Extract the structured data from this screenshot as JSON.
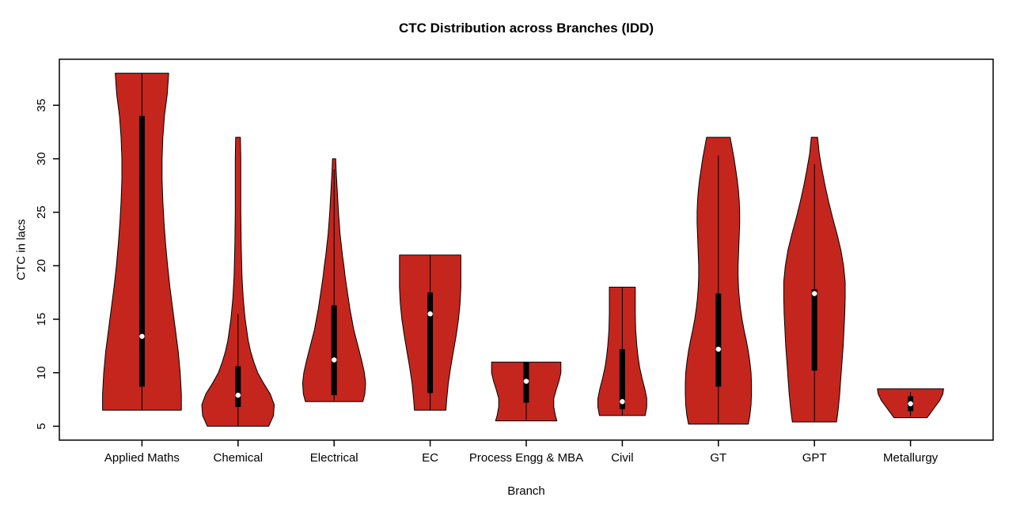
{
  "chart_data": {
    "type": "violin",
    "title": "CTC Distribution across Branches (IDD)",
    "xlabel": "Branch",
    "ylabel": "CTC in lacs",
    "ylim": [
      3.7,
      39.3
    ],
    "yticks": [
      5,
      10,
      15,
      20,
      25,
      30,
      35
    ],
    "fill_color": "#C4261D",
    "stroke_color": "#000000",
    "background_color": "#ffffff",
    "legend": "none",
    "grid": false,
    "categories": [
      "Applied Maths",
      "Chemical",
      "Electrical",
      "EC",
      "Process Engg & MBA",
      "Civil",
      "GT",
      "GPT",
      "Metallurgy"
    ],
    "units": "lacs",
    "violins": [
      {
        "branch": "Applied Maths",
        "min": 6.5,
        "max": 38,
        "whisker_low": 6.5,
        "whisker_high": 38,
        "q1": 8.7,
        "median": 13.4,
        "q3": 34,
        "shape": [
          [
            6.5,
            1.0
          ],
          [
            8,
            1.0
          ],
          [
            10,
            0.97
          ],
          [
            12,
            0.92
          ],
          [
            14,
            0.85
          ],
          [
            16,
            0.78
          ],
          [
            18,
            0.71
          ],
          [
            20,
            0.65
          ],
          [
            22,
            0.6
          ],
          [
            24,
            0.56
          ],
          [
            26,
            0.53
          ],
          [
            28,
            0.51
          ],
          [
            30,
            0.51
          ],
          [
            32,
            0.53
          ],
          [
            34,
            0.57
          ],
          [
            36,
            0.64
          ],
          [
            38,
            0.68
          ]
        ]
      },
      {
        "branch": "Chemical",
        "min": 5,
        "max": 32,
        "whisker_low": 5,
        "whisker_high": 15.5,
        "q1": 6.8,
        "median": 7.9,
        "q3": 10.6,
        "shape": [
          [
            5,
            0.78
          ],
          [
            6,
            0.9
          ],
          [
            7,
            0.92
          ],
          [
            8,
            0.82
          ],
          [
            9,
            0.65
          ],
          [
            10,
            0.5
          ],
          [
            11,
            0.4
          ],
          [
            12,
            0.32
          ],
          [
            13,
            0.26
          ],
          [
            15,
            0.18
          ],
          [
            17,
            0.13
          ],
          [
            19,
            0.1
          ],
          [
            22,
            0.08
          ],
          [
            25,
            0.07
          ],
          [
            28,
            0.07
          ],
          [
            30,
            0.07
          ],
          [
            32,
            0.06
          ]
        ]
      },
      {
        "branch": "Electrical",
        "min": 7.3,
        "max": 30,
        "whisker_low": 7.4,
        "whisker_high": 29,
        "q1": 7.9,
        "median": 11.2,
        "q3": 16.3,
        "shape": [
          [
            7.3,
            0.73
          ],
          [
            8,
            0.78
          ],
          [
            9,
            0.8
          ],
          [
            10,
            0.77
          ],
          [
            11,
            0.71
          ],
          [
            12,
            0.64
          ],
          [
            13,
            0.57
          ],
          [
            14,
            0.5
          ],
          [
            15,
            0.45
          ],
          [
            16,
            0.4
          ],
          [
            17,
            0.36
          ],
          [
            18,
            0.32
          ],
          [
            19,
            0.28
          ],
          [
            20,
            0.25
          ],
          [
            21,
            0.21
          ],
          [
            22,
            0.18
          ],
          [
            23,
            0.15
          ],
          [
            25,
            0.11
          ],
          [
            27,
            0.08
          ],
          [
            29,
            0.05
          ],
          [
            30,
            0.04
          ]
        ]
      },
      {
        "branch": "EC",
        "min": 6.5,
        "max": 21,
        "whisker_low": 6.5,
        "whisker_high": 21,
        "q1": 8.1,
        "median": 15.5,
        "q3": 17.5,
        "shape": [
          [
            6.5,
            0.4
          ],
          [
            7.5,
            0.42
          ],
          [
            9,
            0.46
          ],
          [
            10.5,
            0.52
          ],
          [
            12,
            0.59
          ],
          [
            13.5,
            0.66
          ],
          [
            15,
            0.72
          ],
          [
            16.5,
            0.76
          ],
          [
            18,
            0.78
          ],
          [
            19.5,
            0.78
          ],
          [
            21,
            0.78
          ]
        ]
      },
      {
        "branch": "Process Engg & MBA",
        "min": 5.5,
        "max": 11,
        "whisker_low": 5.6,
        "whisker_high": 11,
        "q1": 7.2,
        "median": 9.2,
        "q3": 11,
        "shape": [
          [
            5.5,
            0.78
          ],
          [
            6,
            0.74
          ],
          [
            6.8,
            0.7
          ],
          [
            7.6,
            0.7
          ],
          [
            8.4,
            0.76
          ],
          [
            9.2,
            0.83
          ],
          [
            10,
            0.88
          ],
          [
            11,
            0.88
          ]
        ]
      },
      {
        "branch": "Civil",
        "min": 6,
        "max": 18,
        "whisker_low": 6,
        "whisker_high": 18,
        "q1": 6.6,
        "median": 7.3,
        "q3": 12.2,
        "shape": [
          [
            6,
            0.58
          ],
          [
            6.8,
            0.62
          ],
          [
            7.6,
            0.62
          ],
          [
            8.5,
            0.57
          ],
          [
            9.5,
            0.5
          ],
          [
            10.5,
            0.44
          ],
          [
            11.5,
            0.4
          ],
          [
            12.5,
            0.37
          ],
          [
            14,
            0.34
          ],
          [
            15.5,
            0.33
          ],
          [
            17,
            0.33
          ],
          [
            18,
            0.33
          ]
        ]
      },
      {
        "branch": "GT",
        "min": 5.2,
        "max": 32,
        "whisker_low": 5.3,
        "whisker_high": 30.3,
        "q1": 8.7,
        "median": 12.2,
        "q3": 17.4,
        "shape": [
          [
            5.2,
            0.76
          ],
          [
            6,
            0.8
          ],
          [
            7,
            0.83
          ],
          [
            8,
            0.84
          ],
          [
            9,
            0.84
          ],
          [
            10,
            0.83
          ],
          [
            11,
            0.8
          ],
          [
            12,
            0.76
          ],
          [
            13,
            0.71
          ],
          [
            14,
            0.65
          ],
          [
            15,
            0.6
          ],
          [
            16,
            0.56
          ],
          [
            17,
            0.53
          ],
          [
            18,
            0.51
          ],
          [
            19,
            0.5
          ],
          [
            20,
            0.5
          ],
          [
            21,
            0.51
          ],
          [
            22,
            0.52
          ],
          [
            23,
            0.53
          ],
          [
            24,
            0.54
          ],
          [
            25,
            0.54
          ],
          [
            26,
            0.53
          ],
          [
            27,
            0.51
          ],
          [
            28,
            0.48
          ],
          [
            29,
            0.44
          ],
          [
            30,
            0.4
          ],
          [
            31,
            0.35
          ],
          [
            32,
            0.3
          ]
        ]
      },
      {
        "branch": "GPT",
        "min": 5.4,
        "max": 32,
        "whisker_low": 5.5,
        "whisker_high": 29.5,
        "q1": 10.2,
        "median": 17.4,
        "q3": 17.8,
        "shape": [
          [
            5.4,
            0.56
          ],
          [
            6.5,
            0.6
          ],
          [
            8,
            0.64
          ],
          [
            9.5,
            0.67
          ],
          [
            11,
            0.7
          ],
          [
            12.5,
            0.73
          ],
          [
            14,
            0.75
          ],
          [
            15.5,
            0.77
          ],
          [
            17,
            0.78
          ],
          [
            18.5,
            0.78
          ],
          [
            20,
            0.74
          ],
          [
            21.5,
            0.67
          ],
          [
            23,
            0.57
          ],
          [
            24.5,
            0.46
          ],
          [
            26,
            0.36
          ],
          [
            27.5,
            0.27
          ],
          [
            29,
            0.19
          ],
          [
            30.5,
            0.12
          ],
          [
            32,
            0.08
          ]
        ]
      },
      {
        "branch": "Metallurgy",
        "min": 5.8,
        "max": 8.5,
        "whisker_low": 5.9,
        "whisker_high": 8.2,
        "q1": 6.4,
        "median": 7.1,
        "q3": 7.8,
        "shape": [
          [
            5.8,
            0.42
          ],
          [
            6.2,
            0.5
          ],
          [
            6.8,
            0.62
          ],
          [
            7.4,
            0.74
          ],
          [
            8,
            0.82
          ],
          [
            8.5,
            0.84
          ]
        ]
      }
    ]
  }
}
